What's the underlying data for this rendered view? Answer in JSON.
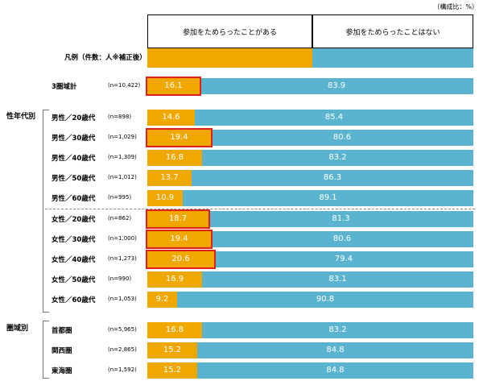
{
  "unit_note": "（構成比：%）",
  "headers": {
    "col_a": "参加をためらったことがある",
    "col_b": "参加をためらったことはない"
  },
  "legend": {
    "label": "凡例（件数：人※補正後）"
  },
  "groups": {
    "age_gender": "性年代別",
    "region": "圏域別"
  },
  "colors": {
    "series_a": "#f0a800",
    "series_b": "#5ab4cf",
    "highlight": "#e0201c"
  },
  "chart_data": {
    "type": "bar",
    "orientation": "horizontal",
    "stacked": true,
    "title": "",
    "xlabel": "",
    "ylabel": "",
    "xlim": [
      0,
      100
    ],
    "series": [
      {
        "name": "参加をためらったことがある",
        "values": [
          16.1,
          14.6,
          19.4,
          16.8,
          13.7,
          10.9,
          18.7,
          19.4,
          20.6,
          16.9,
          9.2,
          16.8,
          15.2,
          15.2
        ]
      },
      {
        "name": "参加をためらったことはない",
        "values": [
          83.9,
          85.4,
          80.6,
          83.2,
          86.3,
          89.1,
          81.3,
          80.6,
          79.4,
          83.1,
          90.8,
          83.2,
          84.8,
          84.8
        ]
      }
    ],
    "categories": [
      "3圏域計",
      "男性／20歳代",
      "男性／30歳代",
      "男性／40歳代",
      "男性／50歳代",
      "男性／60歳代",
      "女性／20歳代",
      "女性／30歳代",
      "女性／40歳代",
      "女性／50歳代",
      "女性／60歳代",
      "首都圏",
      "関西圏",
      "東海圏"
    ],
    "n": [
      "(n=10,422)",
      "(n=898)",
      "(n=1,029)",
      "(n=1,309)",
      "(n=1,012)",
      "(n=995)",
      "(n=862)",
      "(n=1,000)",
      "(n=1,273)",
      "(n=990)",
      "(n=1,053)",
      "(n=5,965)",
      "(n=2,865)",
      "(n=1,592)"
    ],
    "value_labels_a": [
      "16.1",
      "14.6",
      "19.4",
      "16.8",
      "13.7",
      "10.9",
      "18.7",
      "19.4",
      "20.6",
      "16.9",
      "9.2",
      "16.8",
      "15.2",
      "15.2"
    ],
    "value_labels_b": [
      "83.9",
      "85.4",
      "80.6",
      "83.2",
      "86.3",
      "89.1",
      "81.3",
      "80.6",
      "79.4",
      "83.1",
      "90.8",
      "83.2",
      "84.8",
      "84.8"
    ],
    "highlighted": [
      true,
      false,
      true,
      false,
      false,
      false,
      true,
      true,
      true,
      false,
      false,
      false,
      false,
      false
    ]
  }
}
